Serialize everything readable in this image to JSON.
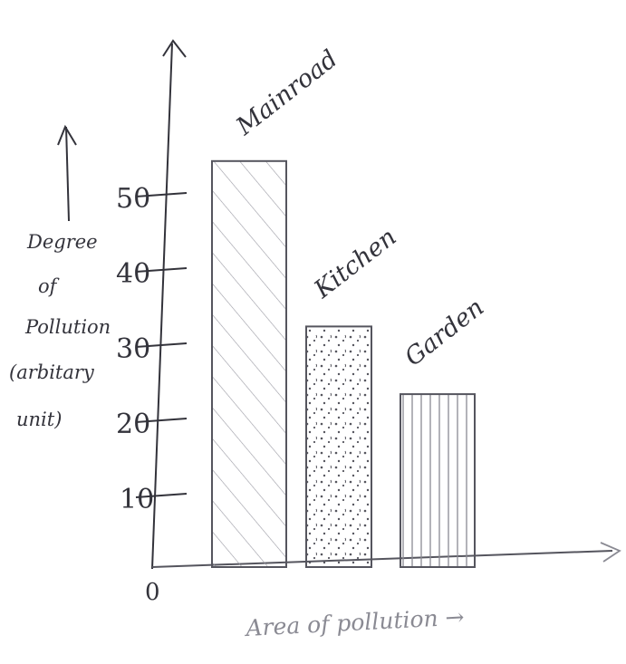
{
  "chart_data": {
    "type": "bar",
    "categories": [
      "Mainroad",
      "Kitchen",
      "Garden"
    ],
    "values": [
      54,
      32,
      23
    ],
    "fill_patterns": [
      "diagonal-hatch",
      "dotted",
      "vertical-lines"
    ],
    "ylim": [
      0,
      60
    ],
    "yticks": [
      "10",
      "20",
      "30",
      "40",
      "50"
    ],
    "origin_label": "0",
    "ylabel_lines": [
      "Degree",
      "of",
      "Pollution",
      "(arbitary",
      "unit)"
    ],
    "xlabel": "Area of pollution →",
    "grid": false,
    "colors": {
      "ink": "#33333b",
      "faint_ink": "#8a8a93",
      "paper": "#ffffff"
    }
  }
}
